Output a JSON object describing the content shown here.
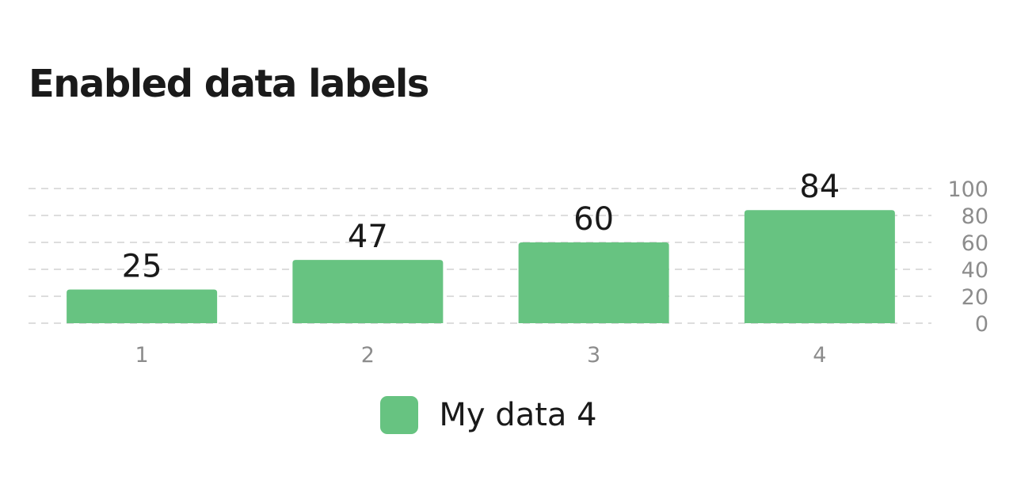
{
  "chart_data": {
    "type": "bar",
    "title": "Enabled data labels",
    "categories": [
      "1",
      "2",
      "3",
      "4"
    ],
    "series": [
      {
        "name": "My data 4",
        "values": [
          25,
          47,
          60,
          84
        ]
      }
    ],
    "data_labels": [
      "25",
      "47",
      "60",
      "84"
    ],
    "y_ticks": [
      "0",
      "20",
      "40",
      "60",
      "80",
      "100"
    ],
    "ylim": [
      0,
      100
    ],
    "y_axis_side": "right",
    "grid": true,
    "legend_position": "bottom",
    "xlabel": "",
    "ylabel": ""
  },
  "colors": {
    "bar": "#67c381",
    "grid": "#dddddd",
    "tick": "#8c8c8c",
    "text": "#1a1a1a"
  }
}
